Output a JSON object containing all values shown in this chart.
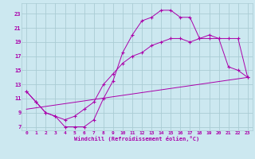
{
  "xlabel": "Windchill (Refroidissement éolien,°C)",
  "bg_color": "#cce8f0",
  "grid_color": "#aaccd4",
  "line_color": "#aa00aa",
  "xlim": [
    -0.5,
    23.5
  ],
  "ylim": [
    6.5,
    24.5
  ],
  "xticks": [
    0,
    1,
    2,
    3,
    4,
    5,
    6,
    7,
    8,
    9,
    10,
    11,
    12,
    13,
    14,
    15,
    16,
    17,
    18,
    19,
    20,
    21,
    22,
    23
  ],
  "yticks": [
    7,
    9,
    11,
    13,
    15,
    17,
    19,
    21,
    23
  ],
  "line1_x": [
    0,
    1,
    2,
    3,
    4,
    5,
    6,
    7,
    8,
    9,
    10,
    11,
    12,
    13,
    14,
    15,
    16,
    17,
    18,
    19,
    20,
    21,
    22,
    23
  ],
  "line1_y": [
    12,
    10.5,
    9.0,
    8.5,
    7.0,
    7.0,
    7.0,
    8.0,
    11.0,
    13.5,
    17.5,
    20.0,
    22.0,
    22.5,
    23.5,
    23.5,
    22.5,
    22.5,
    19.5,
    20.0,
    19.5,
    15.5,
    15.0,
    14.0
  ],
  "line2_x": [
    0,
    1,
    2,
    3,
    4,
    5,
    6,
    7,
    8,
    9,
    10,
    11,
    12,
    13,
    14,
    15,
    16,
    17,
    18,
    19,
    20,
    21,
    22,
    23
  ],
  "line2_y": [
    12,
    10.5,
    9.0,
    8.5,
    8.0,
    8.5,
    9.5,
    10.5,
    13.0,
    14.5,
    16.0,
    17.0,
    17.5,
    18.5,
    19.0,
    19.5,
    19.5,
    19.0,
    19.5,
    19.5,
    19.5,
    19.5,
    19.5,
    14.0
  ],
  "line3_x": [
    0,
    23
  ],
  "line3_y": [
    9.5,
    14.0
  ]
}
